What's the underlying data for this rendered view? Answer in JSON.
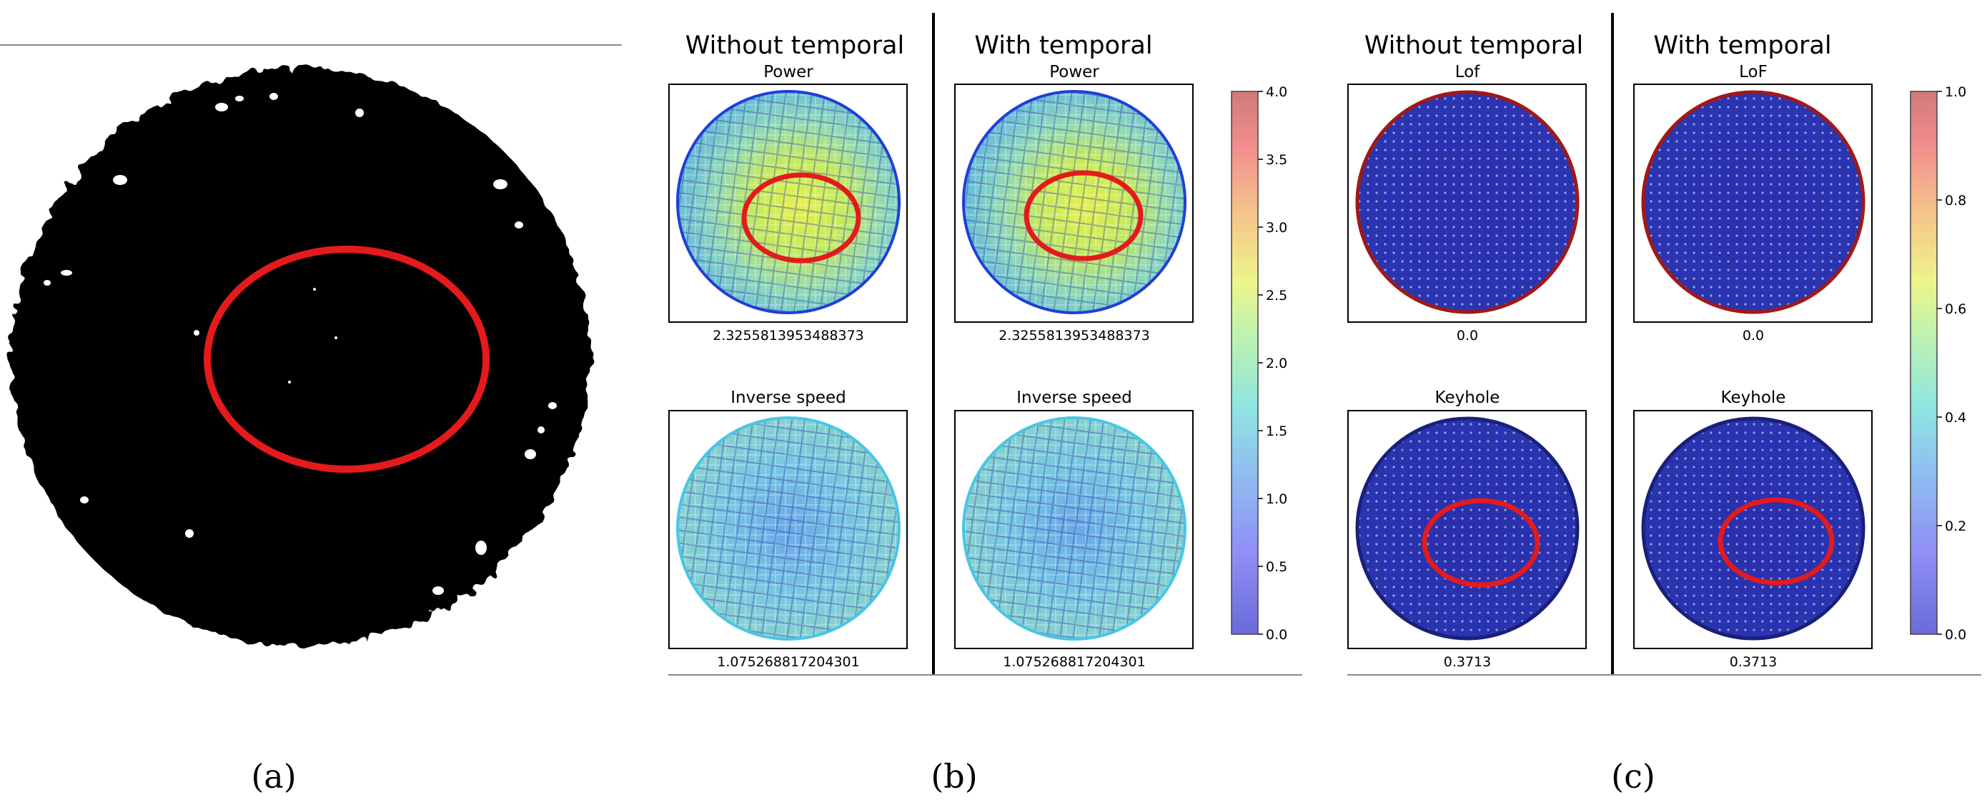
{
  "panel_a": {
    "sub_label": "(a)",
    "subject": "ct-scan-cross-section"
  },
  "panel_b": {
    "sub_label": "(b)",
    "columns": [
      {
        "header": "Without temporal",
        "maps": [
          {
            "title": "Power",
            "value": "2.3255813953488373",
            "highlight": true
          },
          {
            "title": "Inverse speed",
            "value": "1.075268817204301",
            "highlight": false
          }
        ]
      },
      {
        "header": "With temporal",
        "maps": [
          {
            "title": "Power",
            "value": "2.3255813953488373",
            "highlight": true
          },
          {
            "title": "Inverse speed",
            "value": "1.075268817204301",
            "highlight": false
          }
        ]
      }
    ],
    "colorbar": {
      "ticks": [
        "0.0",
        "0.5",
        "1.0",
        "1.5",
        "2.0",
        "2.5",
        "3.0",
        "3.5",
        "4.0"
      ],
      "min": 0,
      "max": 4
    }
  },
  "panel_c": {
    "sub_label": "(c)",
    "columns": [
      {
        "header": "Without temporal",
        "maps": [
          {
            "title": "Lof",
            "value": "0.0",
            "highlight": false
          },
          {
            "title": "Keyhole",
            "value": "0.3713",
            "highlight": true
          }
        ]
      },
      {
        "header": "With temporal",
        "maps": [
          {
            "title": "LoF",
            "value": "0.0",
            "highlight": false
          },
          {
            "title": "Keyhole",
            "value": "0.3713",
            "highlight": true
          }
        ]
      }
    ],
    "colorbar": {
      "ticks": [
        "0.0",
        "0.2",
        "0.4",
        "0.6",
        "0.8",
        "1.0"
      ],
      "min": 0,
      "max": 1
    }
  },
  "colors": {
    "highlight_ring": "#e41a1c",
    "divider": "#000000",
    "frame": "#000000",
    "rule": "#888888"
  }
}
